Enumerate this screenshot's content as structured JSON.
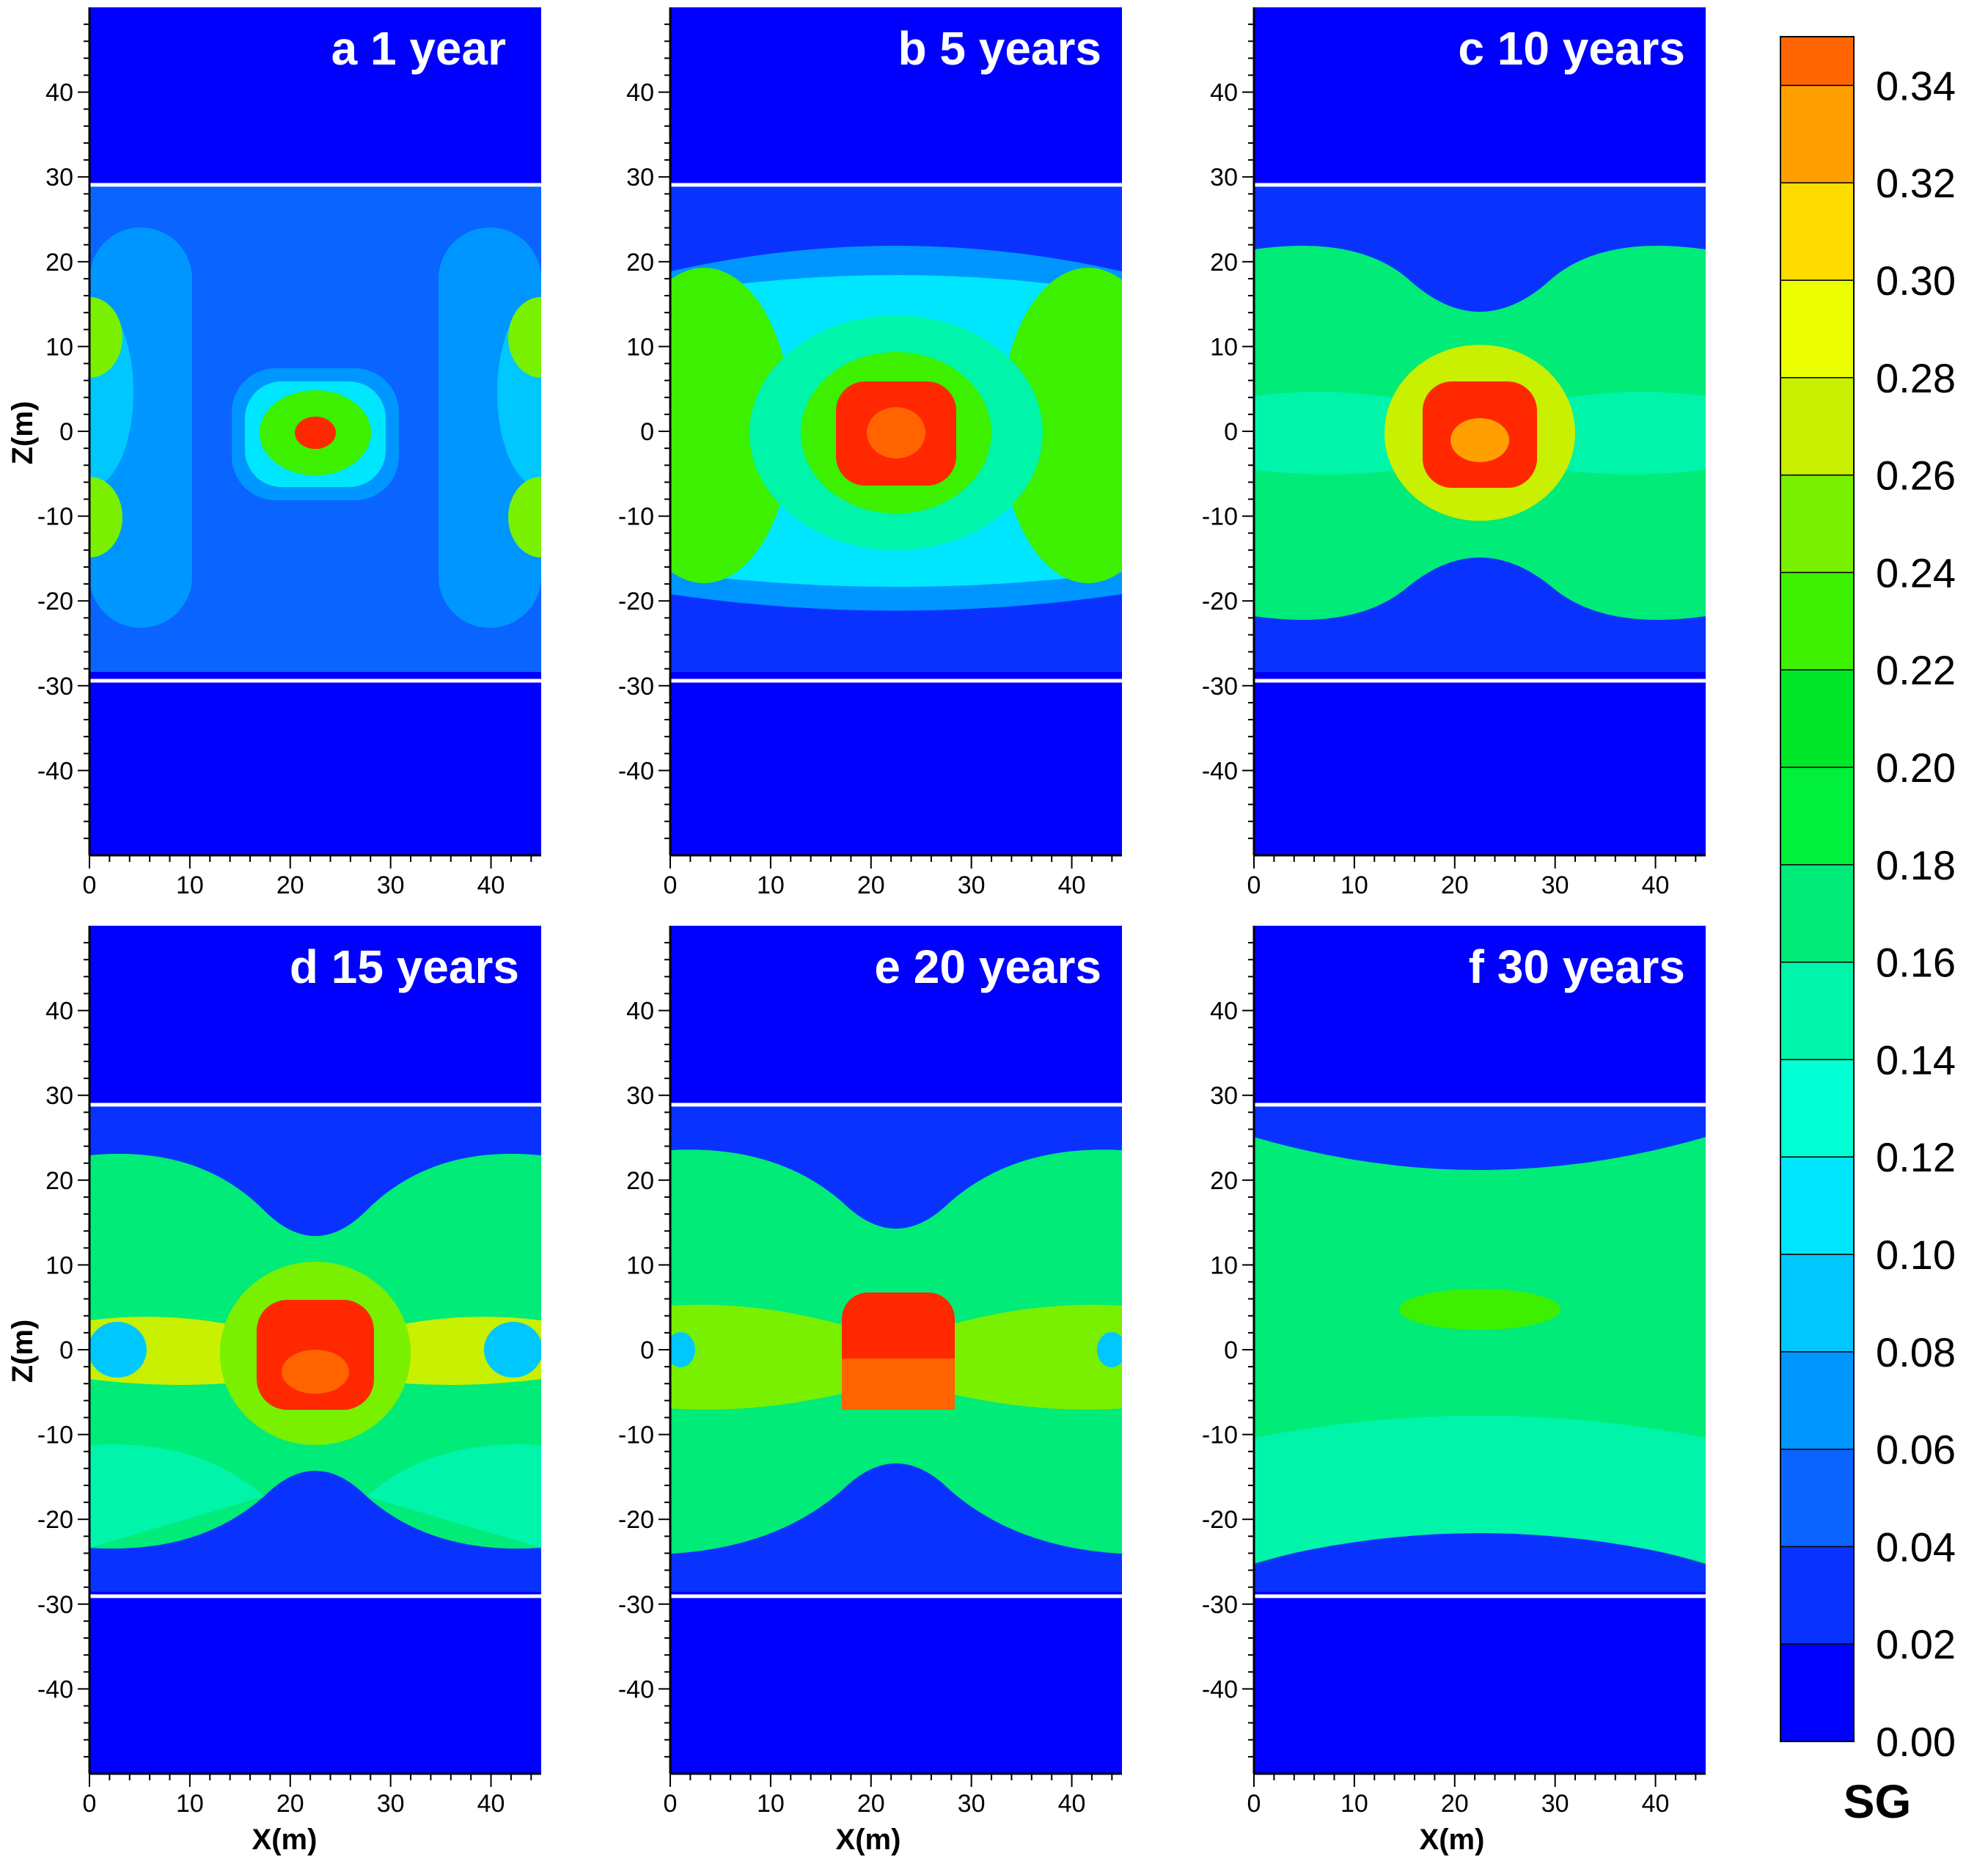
{
  "chart_data": {
    "type": "heatmap",
    "variable": "SG",
    "xlabel": "X(m)",
    "ylabel": "Z(m)",
    "xlim": [
      0,
      45
    ],
    "ylim": [
      -50,
      50
    ],
    "x_ticks": [
      "0",
      "10",
      "20",
      "30",
      "40"
    ],
    "y_ticks": [
      "40",
      "30",
      "20",
      "10",
      "0",
      "-10",
      "-20",
      "-30",
      "-40"
    ],
    "boundary_z": [
      28.5,
      -28.5
    ],
    "panels": [
      {
        "label": "a  1 year",
        "t": 1
      },
      {
        "label": "b  5 years",
        "t": 5
      },
      {
        "label": "c  10 years",
        "t": 10
      },
      {
        "label": "d  15 years",
        "t": 15
      },
      {
        "label": "e  20 years",
        "t": 20
      },
      {
        "label": "f  30 years",
        "t": 30
      }
    ],
    "colorbar": {
      "title": "SG",
      "levels": [
        0.0,
        0.02,
        0.04,
        0.06,
        0.08,
        0.1,
        0.12,
        0.14,
        0.16,
        0.18,
        0.2,
        0.22,
        0.24,
        0.26,
        0.28,
        0.3,
        0.32,
        0.34,
        0.35
      ],
      "labels": [
        "0.34",
        "0.32",
        "0.30",
        "0.28",
        "0.26",
        "0.24",
        "0.22",
        "0.20",
        "0.18",
        "0.16",
        "0.14",
        "0.12",
        "0.10",
        "0.08",
        "0.06",
        "0.04",
        "0.02",
        "0.00"
      ],
      "colors": [
        "#0000ff",
        "#0a32ff",
        "#0a64ff",
        "#0096ff",
        "#00c8ff",
        "#00e6ff",
        "#00ffd2",
        "#00f5aa",
        "#00eb78",
        "#00f03c",
        "#00e628",
        "#3cf000",
        "#78f000",
        "#c8f000",
        "#ebff00",
        "#ffdc00",
        "#ffa000",
        "#ff6400",
        "#ff2800",
        "#ff0000"
      ]
    }
  }
}
